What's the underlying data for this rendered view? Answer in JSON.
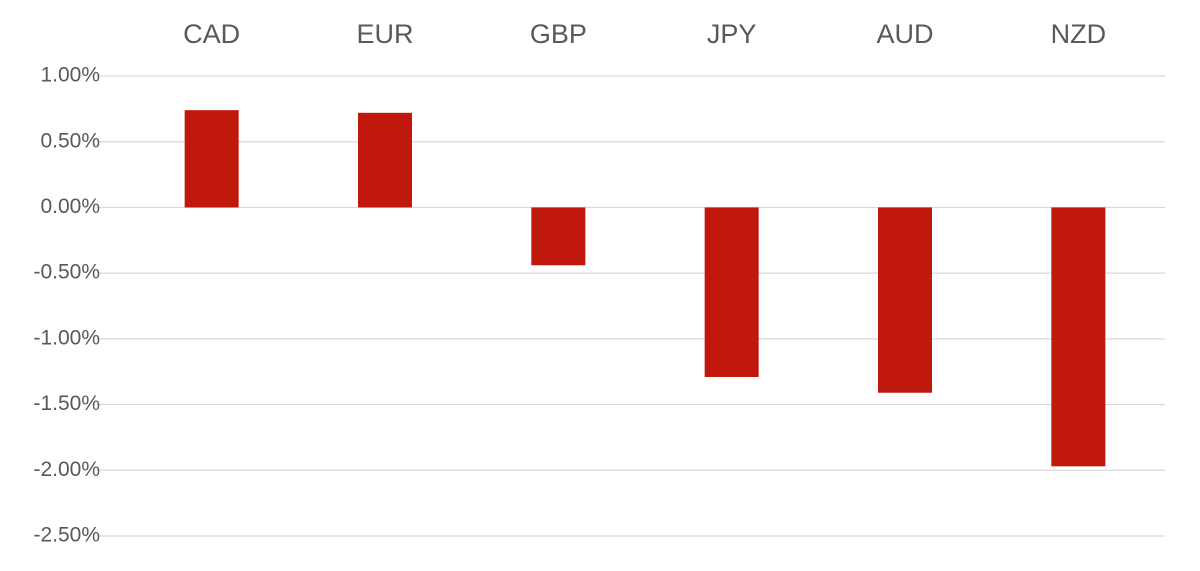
{
  "chart_data": {
    "type": "bar",
    "categories": [
      "CAD",
      "EUR",
      "GBP",
      "JPY",
      "AUD",
      "NZD"
    ],
    "values": [
      0.74,
      0.72,
      -0.44,
      -1.29,
      -1.41,
      -1.97
    ],
    "color": "#c0180c",
    "ylim": [
      -2.5,
      1
    ],
    "yticks": [
      {
        "value": 1,
        "label": "1.00%"
      },
      {
        "value": 0.5,
        "label": "0.50%"
      },
      {
        "value": 0,
        "label": "0.00%"
      },
      {
        "value": -0.5,
        "label": "-0.50%"
      },
      {
        "value": -1,
        "label": "-1.00%"
      },
      {
        "value": -1.5,
        "label": "-1.50%"
      },
      {
        "value": -2,
        "label": "-2.00%"
      },
      {
        "value": -2.5,
        "label": "-2.50%"
      }
    ],
    "grid": true
  }
}
